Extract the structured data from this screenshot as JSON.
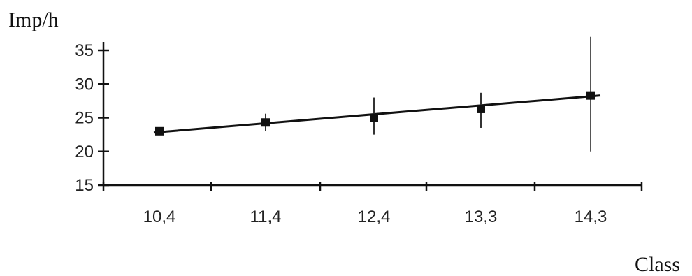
{
  "chart_data": {
    "type": "line",
    "title": "",
    "ylabel": "Imp/h",
    "xlabel": "Class",
    "categories": [
      "10,4",
      "11,4",
      "12,4",
      "13,3",
      "14,3"
    ],
    "yticks": [
      15,
      20,
      25,
      30,
      35
    ],
    "ylim": [
      15,
      36
    ],
    "grid": false,
    "points": [
      {
        "x": "10,4",
        "y": 23.0,
        "err_low": 23.0,
        "err_high": 23.0
      },
      {
        "x": "11,4",
        "y": 24.3,
        "err_low": 23.0,
        "err_high": 25.6
      },
      {
        "x": "12,4",
        "y": 25.0,
        "err_low": 22.5,
        "err_high": 28.0
      },
      {
        "x": "13,3",
        "y": 26.3,
        "err_low": 23.5,
        "err_high": 28.7
      },
      {
        "x": "14,3",
        "y": 28.3,
        "err_low": 20.0,
        "err_high": 37.0
      }
    ],
    "trend_line": {
      "y_start": 22.8,
      "y_end": 28.3
    }
  }
}
